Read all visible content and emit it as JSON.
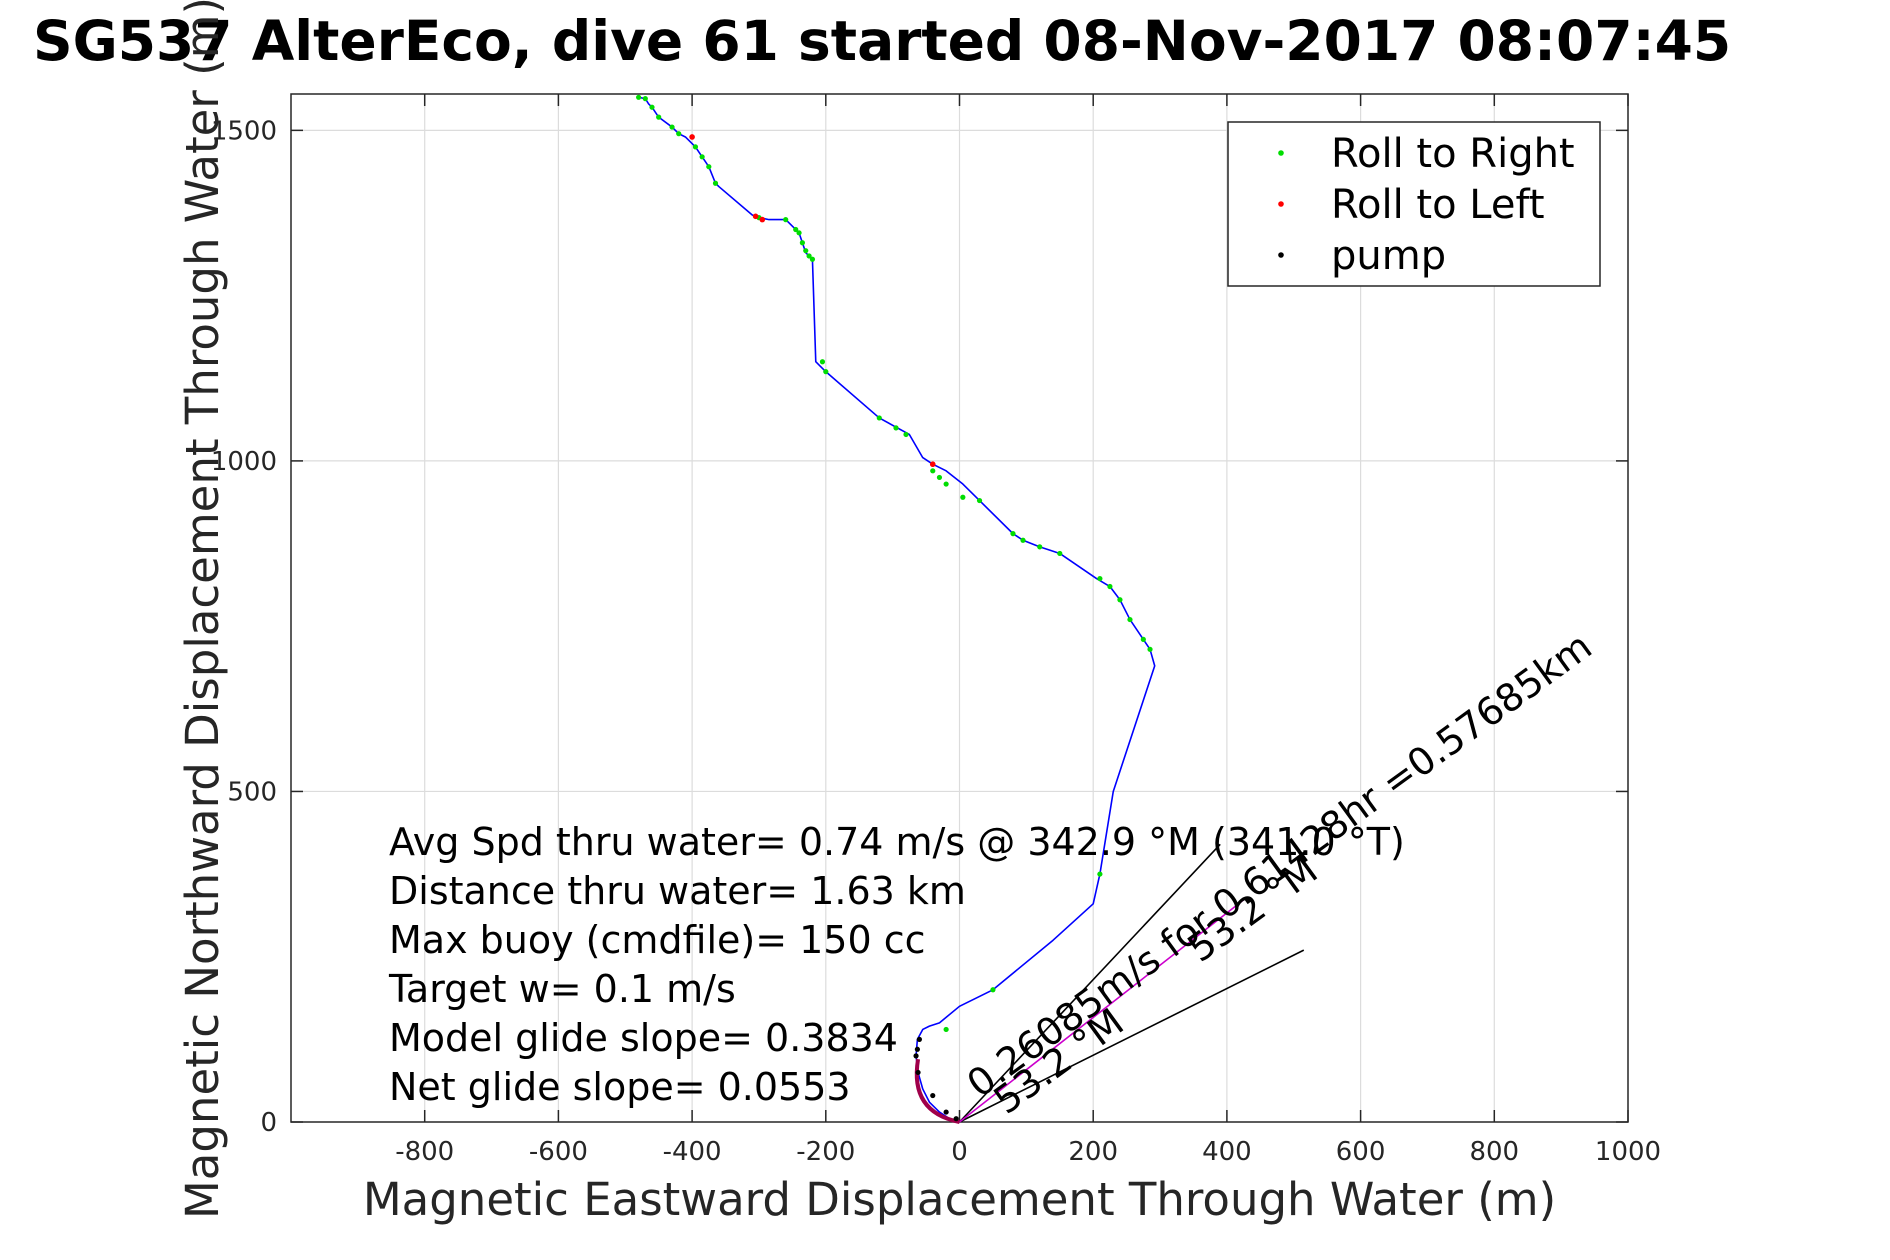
{
  "chart_data": {
    "type": "line",
    "title": "SG537 AlterEco, dive 61 started 08-Nov-2017 08:07:45",
    "xlabel": "Magnetic Eastward Displacement Through Water (m)",
    "ylabel": "Magnetic Northward Displacement Through Water (m)",
    "xlim": [
      -1000,
      1000
    ],
    "ylim": [
      0,
      1555
    ],
    "xticks": [
      -800,
      -600,
      -400,
      -200,
      0,
      200,
      400,
      600,
      800,
      1000
    ],
    "yticks": [
      0,
      500,
      1000,
      1500
    ],
    "grid": true,
    "legend_position": "top-right",
    "colors": {
      "track": "#0000ff",
      "roll_right": "#00dd00",
      "roll_left": "#ff0000",
      "pump": "#000000",
      "current": "#cc00cc",
      "glide": "#000000"
    },
    "legend": [
      {
        "label": "Roll to Right",
        "color": "#00dd00"
      },
      {
        "label": "Roll to Left",
        "color": "#ff0000"
      },
      {
        "label": "pump",
        "color": "#000000"
      }
    ],
    "track": {
      "x": [
        0,
        -15,
        -30,
        -45,
        -55,
        -62,
        -65,
        -63,
        -55,
        -45,
        -30,
        0,
        50,
        140,
        200,
        210,
        230,
        292,
        285,
        275,
        255,
        240,
        225,
        205,
        150,
        135,
        120,
        95,
        80,
        30,
        5,
        -20,
        -40,
        -55,
        -75,
        -120,
        -200,
        -210,
        -215,
        -220,
        -230,
        -235,
        -240,
        -260,
        -285,
        -300,
        -310,
        -360,
        -365,
        -375,
        -385,
        -395,
        -410,
        -420,
        -430,
        -450,
        -460,
        -465,
        -470,
        -480
      ],
      "y": [
        0,
        5,
        15,
        30,
        50,
        75,
        100,
        125,
        140,
        145,
        150,
        175,
        200,
        275,
        330,
        375,
        500,
        690,
        715,
        730,
        760,
        790,
        810,
        822,
        860,
        865,
        870,
        880,
        890,
        940,
        965,
        985,
        995,
        1005,
        1040,
        1065,
        1135,
        1145,
        1150,
        1305,
        1315,
        1330,
        1345,
        1365,
        1365,
        1368,
        1372,
        1415,
        1420,
        1445,
        1460,
        1475,
        1490,
        1495,
        1505,
        1520,
        1535,
        1540,
        1548,
        1550
      ]
    },
    "roll_right": {
      "x": [
        -480,
        -470,
        -460,
        -450,
        -430,
        -420,
        -395,
        -385,
        -375,
        -365,
        -300,
        -260,
        -245,
        -240,
        -235,
        -230,
        -225,
        -220,
        -205,
        -200,
        -120,
        -95,
        -80,
        -40,
        -30,
        -20,
        5,
        30,
        80,
        95,
        120,
        150,
        210,
        225,
        240,
        255,
        275,
        285,
        210,
        50,
        -20
      ],
      "y": [
        1550,
        1548,
        1535,
        1520,
        1505,
        1495,
        1475,
        1460,
        1445,
        1420,
        1368,
        1365,
        1350,
        1345,
        1330,
        1318,
        1310,
        1305,
        1150,
        1135,
        1065,
        1050,
        1040,
        985,
        975,
        965,
        945,
        940,
        890,
        880,
        870,
        860,
        822,
        810,
        790,
        760,
        730,
        715,
        375,
        200,
        140
      ]
    },
    "roll_left": {
      "x": [
        -400,
        -305,
        -295,
        -40
      ],
      "y": [
        1490,
        1370,
        1365,
        995
      ]
    },
    "pump": {
      "x": [
        -62,
        -65,
        -63,
        -60,
        -40,
        -20,
        -5
      ],
      "y": [
        75,
        100,
        110,
        125,
        40,
        15,
        5
      ]
    },
    "current_arrow": {
      "x": [
        0,
        430
      ],
      "y": [
        0,
        340
      ]
    },
    "glide_lines": [
      {
        "x": [
          0,
          390
        ],
        "y": [
          0,
          420
        ]
      },
      {
        "x": [
          0,
          515
        ],
        "y": [
          0,
          260
        ]
      }
    ],
    "stats_lines": [
      "Avg Spd thru water=  0.74 m/s @ 342.9 °M (341.0 °T)",
      "Distance thru water=  1.63 km",
      "Max buoy (cmdfile)= 150 cc",
      "Target w= 0.1 m/s",
      "Model glide slope= 0.3834",
      "Net glide slope= 0.0553"
    ],
    "annotations": [
      {
        "text": "0.26085m/s for 0.61428hr =0.57685km",
        "x": 30,
        "y": 35,
        "angle": -36
      },
      {
        "text": "53.2 °M",
        "x": 360,
        "y": 240,
        "angle": -36
      },
      {
        "text": "53.2 °M",
        "x": 70,
        "y": 10,
        "angle": -36
      }
    ]
  }
}
